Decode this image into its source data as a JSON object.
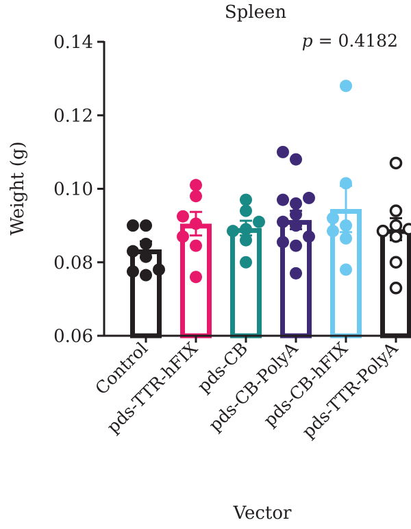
{
  "chart_data": {
    "type": "bar",
    "title": "Spleen",
    "annotation": {
      "label": "p",
      "text": " = 0.4182"
    },
    "xlabel": "Vector",
    "ylabel": "Weight (g)",
    "ylim": [
      0.06,
      0.14
    ],
    "yticks": [
      0.06,
      0.08,
      0.1,
      0.12,
      0.14
    ],
    "ytick_labels": [
      "0.06",
      "0.08",
      "0.10",
      "0.12",
      "0.14"
    ],
    "grid": false,
    "legend": "none",
    "categories": [
      "Control",
      "pds-TTR-hFIX",
      "pds-CB",
      "pds-CB-PolyA",
      "pds-CB-hFIX",
      "pds-TTR-PolyA"
    ],
    "colors": [
      "#231f20",
      "#e8196b",
      "#1a8a86",
      "#3f2a78",
      "#6ec9f0",
      "#231f20"
    ],
    "filled_markers": [
      true,
      true,
      true,
      true,
      true,
      false
    ],
    "means": [
      0.0835,
      0.0905,
      0.0893,
      0.0915,
      0.0945,
      0.089
    ],
    "sem": [
      0.0022,
      0.0032,
      0.002,
      0.0025,
      0.0063,
      0.003
    ],
    "points": [
      [
        0.09,
        0.09,
        0.085,
        0.083,
        0.0815,
        0.078,
        0.0765,
        0.0775
      ],
      [
        0.101,
        0.098,
        0.0925,
        0.0905,
        0.087,
        0.0845,
        0.076
      ],
      [
        0.097,
        0.094,
        0.091,
        0.089,
        0.0885,
        0.086,
        0.08
      ],
      [
        0.11,
        0.108,
        0.0975,
        0.097,
        0.096,
        0.093,
        0.091,
        0.09,
        0.087,
        0.0855,
        0.0845,
        0.077
      ],
      [
        0.128,
        0.1015,
        0.092,
        0.09,
        0.0885,
        0.0865,
        0.078
      ],
      [
        0.107,
        0.094,
        0.09,
        0.089,
        0.0885,
        0.087,
        0.08,
        0.073
      ]
    ]
  }
}
